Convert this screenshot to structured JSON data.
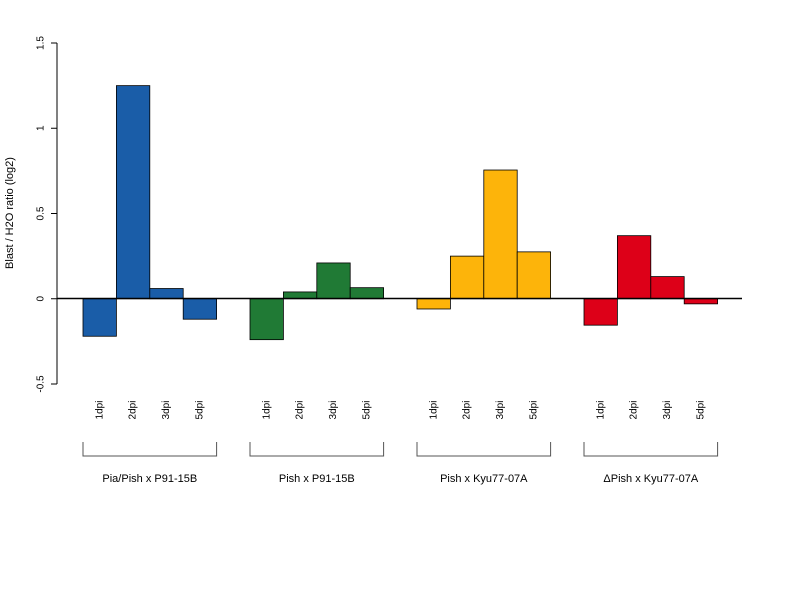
{
  "chart_data": {
    "type": "bar",
    "ylabel": "Blast / H2O ratio (log2)",
    "ylim": [
      -0.5,
      1.5
    ],
    "yticks": [
      -0.5,
      0,
      0.5,
      1,
      1.5
    ],
    "ytick_labels": [
      "-0.5",
      "0",
      "0.5",
      "1",
      "1.5"
    ],
    "grid": false,
    "baseline_at_zero": true,
    "groups": [
      {
        "name": "Pia/Pish x P91-15B",
        "color": "#1a5da8",
        "categories": [
          "1dpi",
          "2dpi",
          "3dpi",
          "5dpi"
        ],
        "values": [
          -0.22,
          1.25,
          0.06,
          -0.12
        ]
      },
      {
        "name": "Pish x P91-15B",
        "color": "#207a35",
        "categories": [
          "1dpi",
          "2dpi",
          "3dpi",
          "5dpi"
        ],
        "values": [
          -0.24,
          0.04,
          0.21,
          0.065
        ]
      },
      {
        "name": "Pish x Kyu77-07A",
        "color": "#fdb40a",
        "categories": [
          "1dpi",
          "2dpi",
          "3dpi",
          "5dpi"
        ],
        "values": [
          -0.06,
          0.25,
          0.755,
          0.275
        ]
      },
      {
        "name": "ΔPish x Kyu77-07A",
        "color": "#dd0018",
        "categories": [
          "1dpi",
          "2dpi",
          "3dpi",
          "5dpi"
        ],
        "values": [
          -0.155,
          0.37,
          0.13,
          -0.03
        ]
      }
    ]
  }
}
